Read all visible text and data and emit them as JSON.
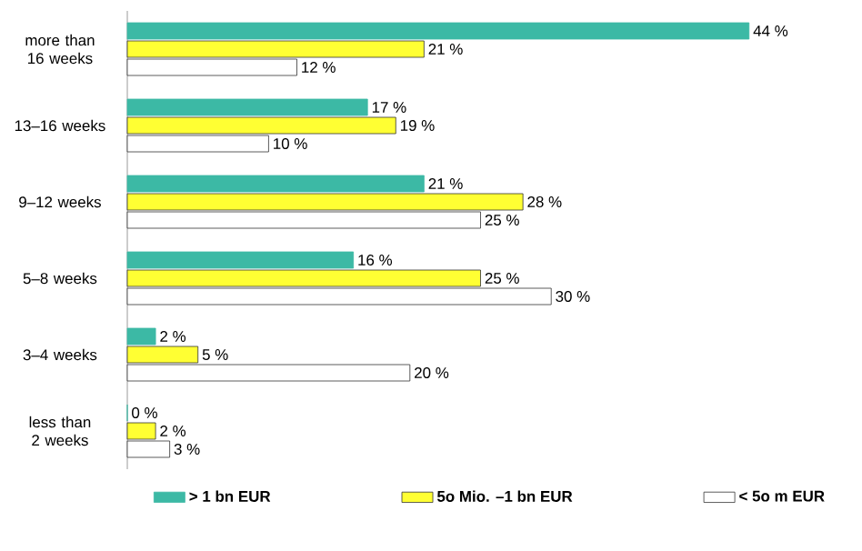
{
  "chart_data": {
    "type": "bar",
    "orientation": "horizontal",
    "legend": "bottom",
    "categories": [
      "more than 16 weeks",
      "13–16 weeks",
      "9–12 weeks",
      "5–8 weeks",
      "3–4 weeks",
      "less than 2 weeks"
    ],
    "series": [
      {
        "name": "> 1 bn EUR",
        "color": "#3cb9a5",
        "values": [
          44,
          17,
          21,
          16,
          2,
          0
        ],
        "value_labels": [
          "44 %",
          "17 %",
          "21 %",
          "16 %",
          "2 %",
          "0 %"
        ]
      },
      {
        "name": "5o Mio. –1 bn EUR",
        "color": "#ffff33",
        "values": [
          21,
          19,
          28,
          25,
          5,
          2
        ],
        "value_labels": [
          "21 %",
          "19 %",
          "28 %",
          "25 %",
          "5 %",
          "2 %"
        ]
      },
      {
        "name": "< 5o m EUR",
        "color": "#ffffff",
        "values": [
          12,
          10,
          25,
          30,
          20,
          3
        ],
        "value_labels": [
          "12 %",
          "10 %",
          "25 %",
          "30 %",
          "20 %",
          "3 %"
        ]
      }
    ]
  }
}
